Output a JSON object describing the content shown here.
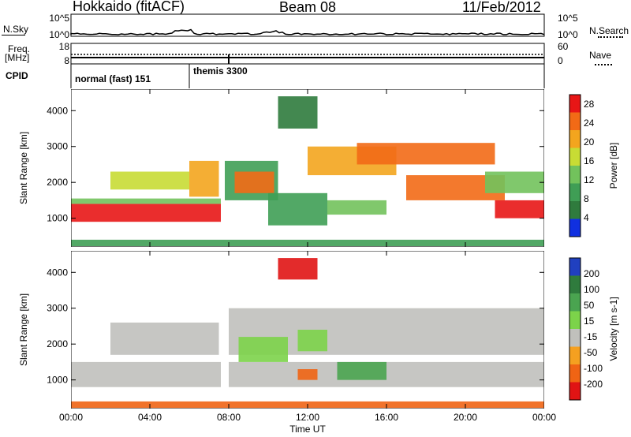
{
  "header": {
    "station": "Hokkaido (fitACF)",
    "beam": "Beam 08",
    "date": "11/Feb/2012"
  },
  "strip": {
    "nsky_label": "N.Sky",
    "nsearch_label": "N.Search",
    "nsky_ticks": [
      "10^5",
      "10^0"
    ],
    "nsearch_ticks": [
      "10^5",
      "10^0"
    ],
    "freq_label_1": "Freq.",
    "freq_label_2": "[MHz]",
    "freq_ticks": [
      "18",
      "8"
    ],
    "nave_label": "Nave",
    "nave_ticks": [
      "60",
      "0"
    ],
    "cpid_label": "CPID",
    "cpid_segments": [
      {
        "label": "normal (fast) 151",
        "start_hour": 0
      },
      {
        "label": "themis 3300",
        "start_hour": 6
      }
    ]
  },
  "chart_data": [
    {
      "type": "heatmap",
      "title": "",
      "xlabel": "Time UT",
      "ylabel": "Slant Range [km]",
      "xlim": [
        0,
        24
      ],
      "ylim": [
        200,
        4600
      ],
      "x_ticks": [
        "00:00",
        "04:00",
        "08:00",
        "12:00",
        "16:00",
        "20:00",
        "00:00"
      ],
      "y_ticks": [
        1000,
        2000,
        3000,
        4000
      ],
      "colorbar": {
        "label": "Power [dB]",
        "ticks": [
          4,
          8,
          12,
          16,
          20,
          24,
          28
        ],
        "range": [
          0,
          30
        ],
        "colors": [
          "#1030e0",
          "#2f7b3d",
          "#3f9e55",
          "#72c25c",
          "#c8dc34",
          "#f3a51e",
          "#f26a16",
          "#e81616"
        ]
      },
      "regions": [
        {
          "t0": 0.0,
          "t1": 7.6,
          "r0": 900,
          "r1": 1400,
          "value": 29
        },
        {
          "t0": 0.0,
          "t1": 7.6,
          "r0": 1400,
          "r1": 1550,
          "value": 14
        },
        {
          "t0": 2.0,
          "t1": 6.0,
          "r0": 1800,
          "r1": 2300,
          "value": 16
        },
        {
          "t0": 6.0,
          "t1": 7.5,
          "r0": 1600,
          "r1": 2600,
          "value": 21
        },
        {
          "t0": 7.8,
          "t1": 10.5,
          "r0": 1500,
          "r1": 2600,
          "value": 8
        },
        {
          "t0": 8.3,
          "t1": 10.3,
          "r0": 1700,
          "r1": 2300,
          "value": 24
        },
        {
          "t0": 10.0,
          "t1": 13.0,
          "r0": 800,
          "r1": 1700,
          "value": 10
        },
        {
          "t0": 13.0,
          "t1": 16.0,
          "r0": 1100,
          "r1": 1500,
          "value": 12
        },
        {
          "t0": 12.0,
          "t1": 16.5,
          "r0": 2200,
          "r1": 3000,
          "value": 20
        },
        {
          "t0": 14.5,
          "t1": 21.5,
          "r0": 2500,
          "r1": 3100,
          "value": 26
        },
        {
          "t0": 17.0,
          "t1": 22.0,
          "r0": 1500,
          "r1": 2200,
          "value": 25
        },
        {
          "t0": 21.5,
          "t1": 24.0,
          "r0": 1000,
          "r1": 1500,
          "value": 28
        },
        {
          "t0": 21.0,
          "t1": 24.0,
          "r0": 1700,
          "r1": 2300,
          "value": 14
        },
        {
          "t0": 10.5,
          "t1": 12.5,
          "r0": 3500,
          "r1": 4400,
          "value": 6
        },
        {
          "t0": 0.0,
          "t1": 24.0,
          "r0": 220,
          "r1": 400,
          "value": 9
        }
      ]
    },
    {
      "type": "heatmap",
      "title": "",
      "xlabel": "Time UT",
      "ylabel": "Slant Range [km]",
      "xlim": [
        0,
        24
      ],
      "ylim": [
        200,
        4600
      ],
      "x_ticks": [
        "00:00",
        "04:00",
        "08:00",
        "12:00",
        "16:00",
        "20:00",
        "00:00"
      ],
      "y_ticks": [
        1000,
        2000,
        3000,
        4000
      ],
      "colorbar": {
        "label": "Velocity [m s-1]",
        "ticks": [
          200,
          100,
          50,
          15,
          -15,
          -50,
          -100,
          -200
        ],
        "colors": [
          "#2040c0",
          "#2f7b3d",
          "#4aa450",
          "#7cd34a",
          "#c0c0bc",
          "#f5a020",
          "#f06414",
          "#e01414"
        ]
      },
      "regions": [
        {
          "t0": 0.0,
          "t1": 7.6,
          "r0": 800,
          "r1": 1500,
          "value": 0
        },
        {
          "t0": 2.0,
          "t1": 7.5,
          "r0": 1700,
          "r1": 2600,
          "value": 0
        },
        {
          "t0": 8.0,
          "t1": 24.0,
          "r0": 1700,
          "r1": 3000,
          "value": 0
        },
        {
          "t0": 8.0,
          "t1": 24.0,
          "r0": 800,
          "r1": 1500,
          "value": 0
        },
        {
          "t0": 8.5,
          "t1": 11.0,
          "r0": 1500,
          "r1": 2200,
          "value": 30
        },
        {
          "t0": 11.5,
          "t1": 13.0,
          "r0": 1800,
          "r1": 2400,
          "value": 40
        },
        {
          "t0": 13.5,
          "t1": 16.0,
          "r0": 1000,
          "r1": 1500,
          "value": 60
        },
        {
          "t0": 11.5,
          "t1": 12.5,
          "r0": 1000,
          "r1": 1300,
          "value": -60
        },
        {
          "t0": 10.5,
          "t1": 12.5,
          "r0": 3800,
          "r1": 4400,
          "value": -120
        },
        {
          "t0": 0.0,
          "t1": 24.0,
          "r0": 220,
          "r1": 400,
          "value": -60
        }
      ]
    }
  ]
}
